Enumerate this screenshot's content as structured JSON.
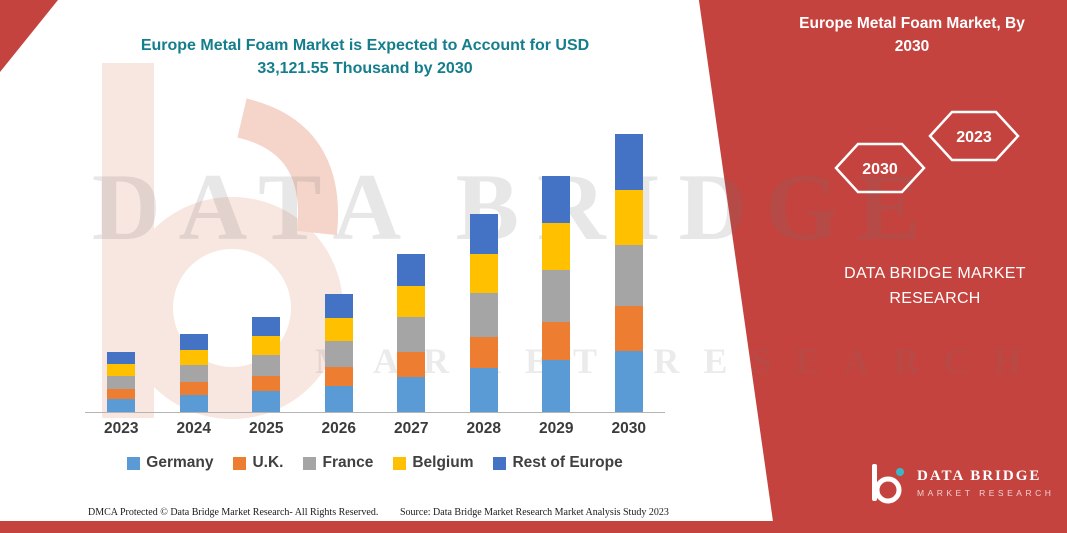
{
  "page": {
    "accent_red": "#C5433E",
    "accent_teal": "#157E8C",
    "axis_color": "#B5B5B5"
  },
  "chart_data": {
    "type": "bar",
    "stacked": true,
    "title": "Europe Metal Foam Market is Expected to Account for USD 33,121.55 Thousand by 2030",
    "unit": "USD Thousand",
    "categories": [
      "2023",
      "2024",
      "2025",
      "2026",
      "2027",
      "2028",
      "2029",
      "2030"
    ],
    "series": [
      {
        "name": "Germany",
        "color": "#5B9BD5",
        "values": [
          1550,
          2050,
          2500,
          3100,
          4150,
          5200,
          6200,
          7300
        ]
      },
      {
        "name": "U.K.",
        "color": "#ED7D31",
        "values": [
          1150,
          1500,
          1800,
          2250,
          3000,
          3800,
          4500,
          5300
        ]
      },
      {
        "name": "France",
        "color": "#A5A5A5",
        "values": [
          1600,
          2050,
          2500,
          3100,
          4150,
          5200,
          6200,
          7300
        ]
      },
      {
        "name": "Belgium",
        "color": "#FFC000",
        "values": [
          1400,
          1850,
          2250,
          2800,
          3750,
          4700,
          5600,
          6600
        ]
      },
      {
        "name": "Rest of Europe",
        "color": "#4472C4",
        "values": [
          1450,
          1850,
          2250,
          2850,
          3750,
          4700,
          5600,
          6621.55
        ]
      }
    ],
    "totals": [
      7150,
      9300,
      11300,
      14100,
      18800,
      23600,
      28100,
      33121.55
    ],
    "ylim": [
      0,
      33121.55
    ],
    "legend_position": "bottom",
    "grid": false
  },
  "side_panel": {
    "title": "Europe Metal Foam Market, By 2030",
    "hexagons": [
      {
        "label": "2030"
      },
      {
        "label": "2023"
      }
    ],
    "brand": "DATA BRIDGE MARKET RESEARCH"
  },
  "watermark": {
    "line1": "DATA BRIDGE",
    "line2": "MARKET RESEARCH"
  },
  "logo": {
    "name": "DATA BRIDGE",
    "tagline": "MARKET RESEARCH"
  },
  "footer": {
    "dmca": "DMCA Protected © Data Bridge Market Research-  All Rights Reserved.",
    "source": "Source: Data Bridge Market Research  Market Analysis Study 2023"
  }
}
